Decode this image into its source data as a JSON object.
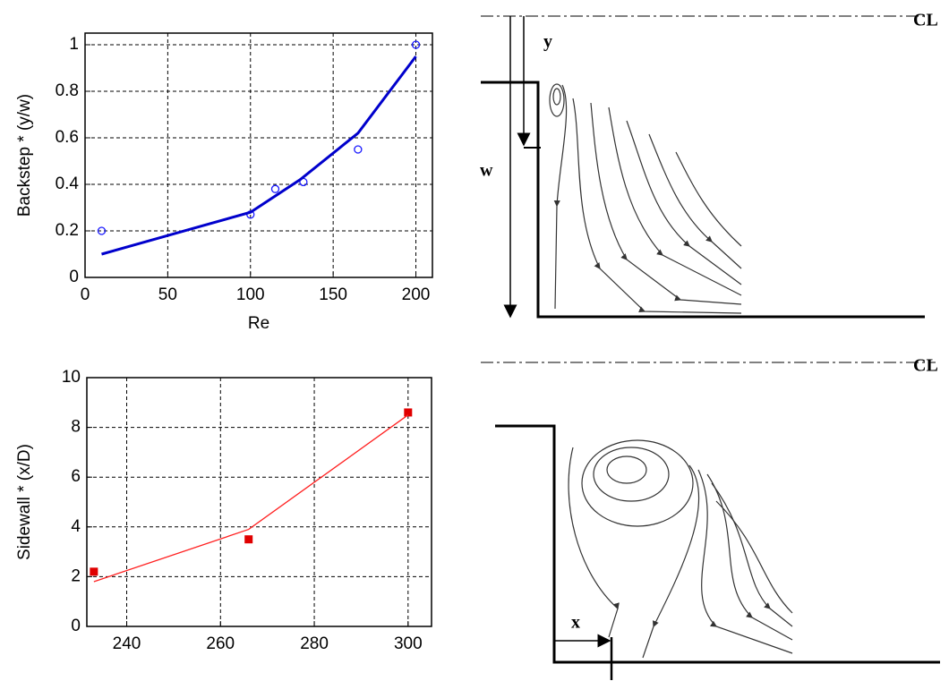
{
  "chart_data": [
    {
      "type": "scatter",
      "ylabel": "Backstep * (y/w)",
      "xlabel": "Re",
      "xlim": [
        0,
        210
      ],
      "ylim": [
        0,
        1.05
      ],
      "xticks": [
        0,
        50,
        100,
        150,
        200
      ],
      "yticks": [
        0,
        0.2,
        0.4,
        0.6,
        0.8,
        1
      ],
      "grid": true,
      "series": [
        {
          "x": [
            10,
            100,
            115,
            132,
            165,
            200
          ],
          "values": [
            0.2,
            0.27,
            0.38,
            0.41,
            0.55,
            1.0
          ],
          "color": "#1a1aff",
          "marker": "open-circle"
        },
        {
          "x": [
            10,
            50,
            100,
            130,
            165,
            200
          ],
          "values": [
            0.1,
            0.18,
            0.28,
            0.42,
            0.62,
            0.95
          ],
          "color": "#0000cc",
          "marker": "line"
        }
      ]
    },
    {
      "type": "scatter",
      "ylabel": "Sidewall * (x/D)",
      "xlim": [
        231.5,
        305
      ],
      "ylim": [
        0,
        10
      ],
      "xticks": [
        240,
        260,
        280,
        300
      ],
      "yticks": [
        0,
        2,
        4,
        6,
        8,
        10
      ],
      "grid": true,
      "series": [
        {
          "x": [
            233,
            266,
            300
          ],
          "values": [
            2.2,
            3.5,
            8.6
          ],
          "color": "#e00000",
          "marker": "filled-square"
        },
        {
          "x": [
            233,
            266,
            300
          ],
          "values": [
            1.8,
            3.9,
            8.5
          ],
          "color": "#ff2020",
          "marker": "line"
        }
      ]
    }
  ],
  "diagrams": {
    "top": {
      "centerline": "CL",
      "y_label": "y",
      "w_label": "w"
    },
    "bottom": {
      "centerline": "CL",
      "x_label": "x"
    }
  }
}
